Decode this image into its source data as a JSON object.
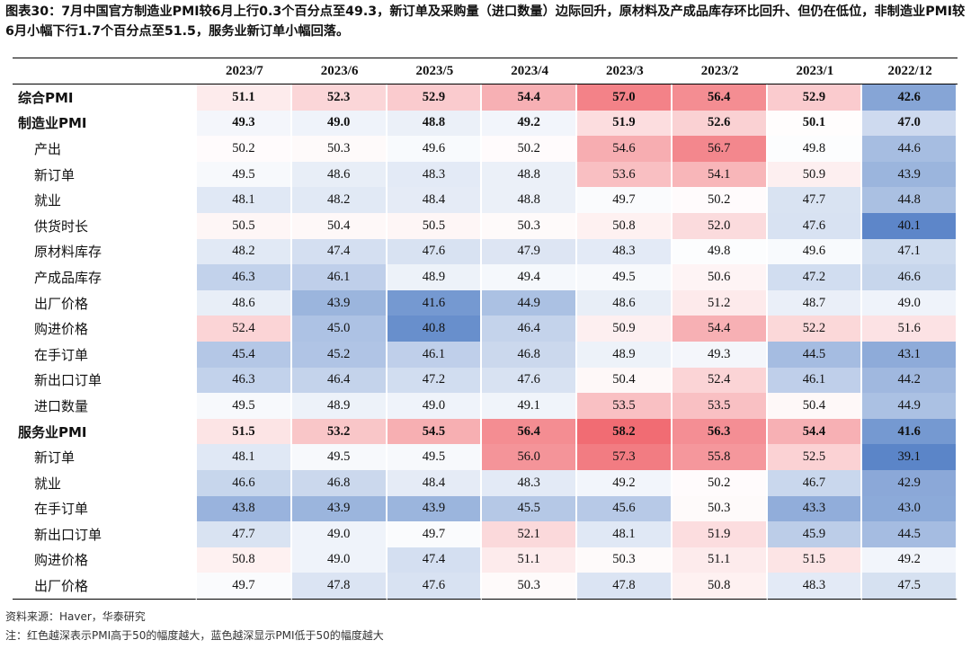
{
  "title": "图表30：7月中国官方制造业PMI较6月上行0.3个百分点至49.3，新订单及采购量（进口数量）边际回升，原材料及产成品库存环比回升、但仍在低位，非制造业PMI较6月小幅下行1.7个百分点至51.5，服务业新订单小幅回落。",
  "chart_data": {
    "type": "table",
    "title": "图表30：7月中国官方制造业PMI较6月上行0.3个百分点至49.3，新订单及采购量（进口数量）边际回升，原材料及产成品库存环比回升、但仍在低位，非制造业PMI较6月小幅下行1.7个百分点至51.5，服务业新订单小幅回落。",
    "columns": [
      "2023/7",
      "2023/6",
      "2023/5",
      "2023/4",
      "2023/3",
      "2023/2",
      "2023/1",
      "2022/12"
    ],
    "threshold": 50,
    "rows": [
      {
        "name": "综合PMI",
        "level": "main",
        "values": [
          51.1,
          52.3,
          52.9,
          54.4,
          57.0,
          56.4,
          52.9,
          42.6
        ]
      },
      {
        "name": "制造业PMI",
        "level": "main",
        "values": [
          49.3,
          49.0,
          48.8,
          49.2,
          51.9,
          52.6,
          50.1,
          47.0
        ]
      },
      {
        "name": "产出",
        "level": "sub",
        "values": [
          50.2,
          50.3,
          49.6,
          50.2,
          54.6,
          56.7,
          49.8,
          44.6
        ]
      },
      {
        "name": "新订单",
        "level": "sub",
        "values": [
          49.5,
          48.6,
          48.3,
          48.8,
          53.6,
          54.1,
          50.9,
          43.9
        ]
      },
      {
        "name": "就业",
        "level": "sub",
        "values": [
          48.1,
          48.2,
          48.4,
          48.8,
          49.7,
          50.2,
          47.7,
          44.8
        ]
      },
      {
        "name": "供货时长",
        "level": "sub",
        "values": [
          50.5,
          50.4,
          50.5,
          50.3,
          50.8,
          52.0,
          47.6,
          40.1
        ]
      },
      {
        "name": "原材料库存",
        "level": "sub",
        "values": [
          48.2,
          47.4,
          47.6,
          47.9,
          48.3,
          49.8,
          49.6,
          47.1
        ]
      },
      {
        "name": "产成品库存",
        "level": "sub",
        "values": [
          46.3,
          46.1,
          48.9,
          49.4,
          49.5,
          50.6,
          47.2,
          46.6
        ]
      },
      {
        "name": "出厂价格",
        "level": "sub",
        "values": [
          48.6,
          43.9,
          41.6,
          44.9,
          48.6,
          51.2,
          48.7,
          49.0
        ]
      },
      {
        "name": "购进价格",
        "level": "sub",
        "values": [
          52.4,
          45.0,
          40.8,
          46.4,
          50.9,
          54.4,
          52.2,
          51.6
        ]
      },
      {
        "name": "在手订单",
        "level": "sub",
        "values": [
          45.4,
          45.2,
          46.1,
          46.8,
          48.9,
          49.3,
          44.5,
          43.1
        ]
      },
      {
        "name": "新出口订单",
        "level": "sub",
        "values": [
          46.3,
          46.4,
          47.2,
          47.6,
          50.4,
          52.4,
          46.1,
          44.2
        ]
      },
      {
        "name": "进口数量",
        "level": "sub",
        "values": [
          49.5,
          48.9,
          49.0,
          49.1,
          53.5,
          53.5,
          50.4,
          44.9
        ]
      },
      {
        "name": "服务业PMI",
        "level": "main",
        "values": [
          51.5,
          53.2,
          54.5,
          56.4,
          58.2,
          56.3,
          54.4,
          41.6
        ]
      },
      {
        "name": "新订单",
        "level": "sub",
        "values": [
          48.1,
          49.5,
          49.5,
          56.0,
          57.3,
          55.8,
          52.5,
          39.1
        ]
      },
      {
        "name": "就业",
        "level": "sub",
        "values": [
          46.6,
          46.8,
          48.4,
          48.3,
          49.2,
          50.2,
          46.7,
          42.9
        ]
      },
      {
        "name": "在手订单",
        "level": "sub",
        "values": [
          43.8,
          43.9,
          43.9,
          45.5,
          45.6,
          50.3,
          43.3,
          43.0
        ]
      },
      {
        "name": "新出口订单",
        "level": "sub",
        "values": [
          47.7,
          49.0,
          49.7,
          52.1,
          48.1,
          51.9,
          45.9,
          44.5
        ]
      },
      {
        "name": "购进价格",
        "level": "sub",
        "values": [
          50.8,
          49.0,
          47.4,
          51.1,
          50.3,
          51.1,
          51.5,
          49.2
        ]
      },
      {
        "name": "出厂价格",
        "level": "sub",
        "values": [
          49.7,
          47.8,
          47.6,
          50.3,
          47.8,
          50.8,
          48.3,
          47.5
        ]
      }
    ]
  },
  "colors": {
    "above_threshold": "#f0676e",
    "below_threshold": "#5b85c8",
    "rule_line": "#000000"
  },
  "footer": {
    "source": "资料来源：Haver，华泰研究",
    "note": "注：红色越深表示PMI高于50的幅度越大，蓝色越深显示PMI低于50的幅度越大"
  }
}
